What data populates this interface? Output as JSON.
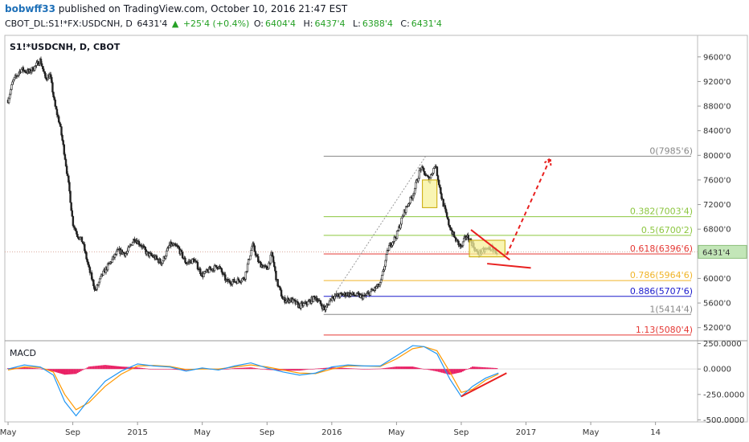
{
  "header": {
    "user": "bobwff33",
    "published": "published on TradingView.com, October 10, 2016 21:47 EST",
    "symbol": "CBOT_DL:S1!*FX:USDCNH, D",
    "price": "6431'4",
    "up_icon": "triangle-up-icon",
    "change": "+25'4 (+0.4%)",
    "o_label": "O:",
    "o_value": "6404'4",
    "h_label": "H:",
    "h_value": "6437'4",
    "l_label": "L:",
    "l_value": "6388'4",
    "c_label": "C:",
    "c_value": "6431'4"
  },
  "chart_label": "S1!*USDCNH, D, CBOT",
  "macd_label": "MACD",
  "colors": {
    "up": "#26a126",
    "fib_0": "#888888",
    "fib_382": "#8cc63f",
    "fib_5": "#8cc63f",
    "fib_618": "#e53935",
    "fib_786": "#f0b429",
    "fib_886": "#1a1acc",
    "fib_1": "#888888",
    "annotation_red": "#e8201f",
    "box_yellow": "#f7f199",
    "macd_line": "#2196f3",
    "signal_line": "#ff9800",
    "hist": "#e91e63",
    "last_price_bg": "#c3e6b8"
  },
  "chart_data": [
    {
      "type": "candlestick",
      "title": "S1!*USDCNH, D, CBOT",
      "y_ticks": [
        "9600'0",
        "9200'0",
        "8800'0",
        "8400'0",
        "8000'0",
        "7600'0",
        "7200'0",
        "6800'0",
        "6400'0",
        "6000'0",
        "5600'0",
        "5200'0"
      ],
      "y_tick_values": [
        9600,
        9200,
        8800,
        8400,
        8000,
        7600,
        7200,
        6800,
        6400,
        6000,
        5600,
        5200
      ],
      "ylim": [
        5000,
        9950
      ],
      "x_ticks": [
        "May",
        "Sep",
        "2015",
        "May",
        "Sep",
        "2016",
        "May",
        "Sep",
        "2017",
        "May",
        "14"
      ],
      "x_tick_values": [
        0,
        4,
        8,
        12,
        16,
        20,
        24,
        28,
        32,
        36,
        40
      ],
      "xlim": [
        -0.2,
        42.6
      ],
      "last_price_label": "6431'4",
      "last_price": 6431.5,
      "price_path": [
        [
          0,
          8900
        ],
        [
          0.3,
          9200
        ],
        [
          0.8,
          9400
        ],
        [
          1.3,
          9350
        ],
        [
          1.7,
          9450
        ],
        [
          2.0,
          9550
        ],
        [
          2.3,
          9250
        ],
        [
          2.6,
          9300
        ],
        [
          2.9,
          8800
        ],
        [
          3.2,
          8500
        ],
        [
          3.5,
          8000
        ],
        [
          3.8,
          7400
        ],
        [
          4.0,
          6900
        ],
        [
          4.3,
          6700
        ],
        [
          4.6,
          6600
        ],
        [
          5.0,
          6150
        ],
        [
          5.4,
          5800
        ],
        [
          5.8,
          6050
        ],
        [
          6.3,
          6250
        ],
        [
          6.8,
          6450
        ],
        [
          7.3,
          6400
        ],
        [
          7.8,
          6650
        ],
        [
          8.2,
          6550
        ],
        [
          8.6,
          6400
        ],
        [
          9.0,
          6350
        ],
        [
          9.5,
          6250
        ],
        [
          10.0,
          6550
        ],
        [
          10.5,
          6500
        ],
        [
          11.0,
          6250
        ],
        [
          11.5,
          6300
        ],
        [
          12.0,
          6050
        ],
        [
          12.5,
          6150
        ],
        [
          13.0,
          6200
        ],
        [
          13.5,
          5950
        ],
        [
          14.0,
          5950
        ],
        [
          14.6,
          6000
        ],
        [
          15.1,
          6550
        ],
        [
          15.5,
          6250
        ],
        [
          16.0,
          6150
        ],
        [
          16.3,
          6400
        ],
        [
          16.6,
          5950
        ],
        [
          17.0,
          5650
        ],
        [
          17.5,
          5650
        ],
        [
          18.0,
          5550
        ],
        [
          18.5,
          5600
        ],
        [
          19.0,
          5700
        ],
        [
          19.4,
          5550
        ],
        [
          19.6,
          5500
        ],
        [
          20.0,
          5700
        ],
        [
          21.0,
          5750
        ],
        [
          22.0,
          5700
        ],
        [
          23.0,
          5900
        ],
        [
          23.5,
          6500
        ],
        [
          24.0,
          6700
        ],
        [
          24.5,
          7100
        ],
        [
          25.0,
          7350
        ],
        [
          25.5,
          7800
        ],
        [
          26.0,
          7600
        ],
        [
          26.4,
          7850
        ],
        [
          26.8,
          7300
        ],
        [
          27.2,
          6900
        ],
        [
          27.6,
          6650
        ],
        [
          28.0,
          6500
        ],
        [
          28.3,
          6700
        ],
        [
          28.6,
          6600
        ],
        [
          29.0,
          6400
        ],
        [
          29.4,
          6450
        ],
        [
          29.8,
          6500
        ],
        [
          30.2,
          6430
        ]
      ],
      "fib_levels": [
        {
          "ratio": "0",
          "label": "0(7985'6)",
          "value": 7985.75,
          "color": "#888888"
        },
        {
          "ratio": "0.382",
          "label": "0.382(7003'4)",
          "value": 7003.5,
          "color": "#8cc63f"
        },
        {
          "ratio": "0.5",
          "label": "0.5(6700'2)",
          "value": 6700.25,
          "color": "#8cc63f"
        },
        {
          "ratio": "0.618",
          "label": "0.618(6396'6)",
          "value": 6396.75,
          "color": "#e53935"
        },
        {
          "ratio": "0.786",
          "label": "0.786(5964'6)",
          "value": 5964.75,
          "color": "#f0b429"
        },
        {
          "ratio": "0.886",
          "label": "0.886(5707'6)",
          "value": 5707.75,
          "color": "#1a1acc"
        },
        {
          "ratio": "1",
          "label": "1(5414'4)",
          "value": 5414.5,
          "color": "#888888"
        },
        {
          "ratio": "1.13",
          "label": "1.13(5080'4)",
          "value": 5080.5,
          "color": "#e53935"
        }
      ],
      "fib_x_range": [
        19.5,
        42.2
      ],
      "annotations": {
        "trend_line_from": [
          19.5,
          5480
        ],
        "trend_line_to": [
          25.8,
          7985
        ],
        "yellow_box_1": {
          "x": [
            25.6,
            26.5
          ],
          "y": [
            7600,
            7150
          ]
        },
        "yellow_box_2": {
          "x": [
            28.5,
            30.7
          ],
          "y": [
            6620,
            6350
          ]
        },
        "wedge_upper": [
          [
            28.6,
            6790
          ],
          [
            31.0,
            6300
          ]
        ],
        "wedge_lower": [
          [
            29.6,
            6240
          ],
          [
            32.3,
            6170
          ]
        ],
        "projection_arrow": [
          [
            30.8,
            6380
          ],
          [
            33.5,
            7950
          ]
        ]
      }
    },
    {
      "type": "line",
      "title": "MACD",
      "y_ticks": [
        "250.0000",
        "0.0000",
        "-250.0000",
        "-500.0000"
      ],
      "y_tick_values": [
        250,
        0,
        -250,
        -500
      ],
      "ylim": [
        -520,
        270
      ],
      "series": [
        {
          "role": "macd",
          "x": [
            0,
            1,
            2,
            2.8,
            3.5,
            4.2,
            5,
            6,
            7,
            8,
            9,
            10,
            11,
            12,
            13,
            14,
            15,
            16,
            17,
            18,
            19,
            20,
            21,
            22,
            23,
            24,
            25,
            25.7,
            26.5,
            27.3,
            28,
            28.7,
            29.5,
            30.3
          ],
          "y": [
            0,
            40,
            20,
            -60,
            -320,
            -460,
            -300,
            -120,
            -20,
            50,
            30,
            20,
            -20,
            10,
            -10,
            30,
            60,
            10,
            -30,
            -60,
            -40,
            20,
            40,
            30,
            30,
            130,
            230,
            220,
            150,
            -100,
            -270,
            -170,
            -90,
            -40
          ]
        },
        {
          "role": "signal",
          "x": [
            0,
            1,
            2,
            2.8,
            3.5,
            4.2,
            5,
            6,
            7,
            8,
            9,
            10,
            11,
            12,
            13,
            14,
            15,
            16,
            17,
            18,
            19,
            20,
            21,
            22,
            23,
            24,
            25,
            25.7,
            26.5,
            27.3,
            28,
            28.7,
            29.5,
            30.3
          ],
          "y": [
            -10,
            20,
            15,
            -30,
            -250,
            -400,
            -330,
            -170,
            -50,
            30,
            35,
            25,
            -5,
            0,
            0,
            20,
            40,
            20,
            -10,
            -40,
            -45,
            0,
            30,
            30,
            25,
            100,
            200,
            220,
            180,
            -30,
            -230,
            -200,
            -110,
            -50
          ]
        }
      ]
    }
  ]
}
